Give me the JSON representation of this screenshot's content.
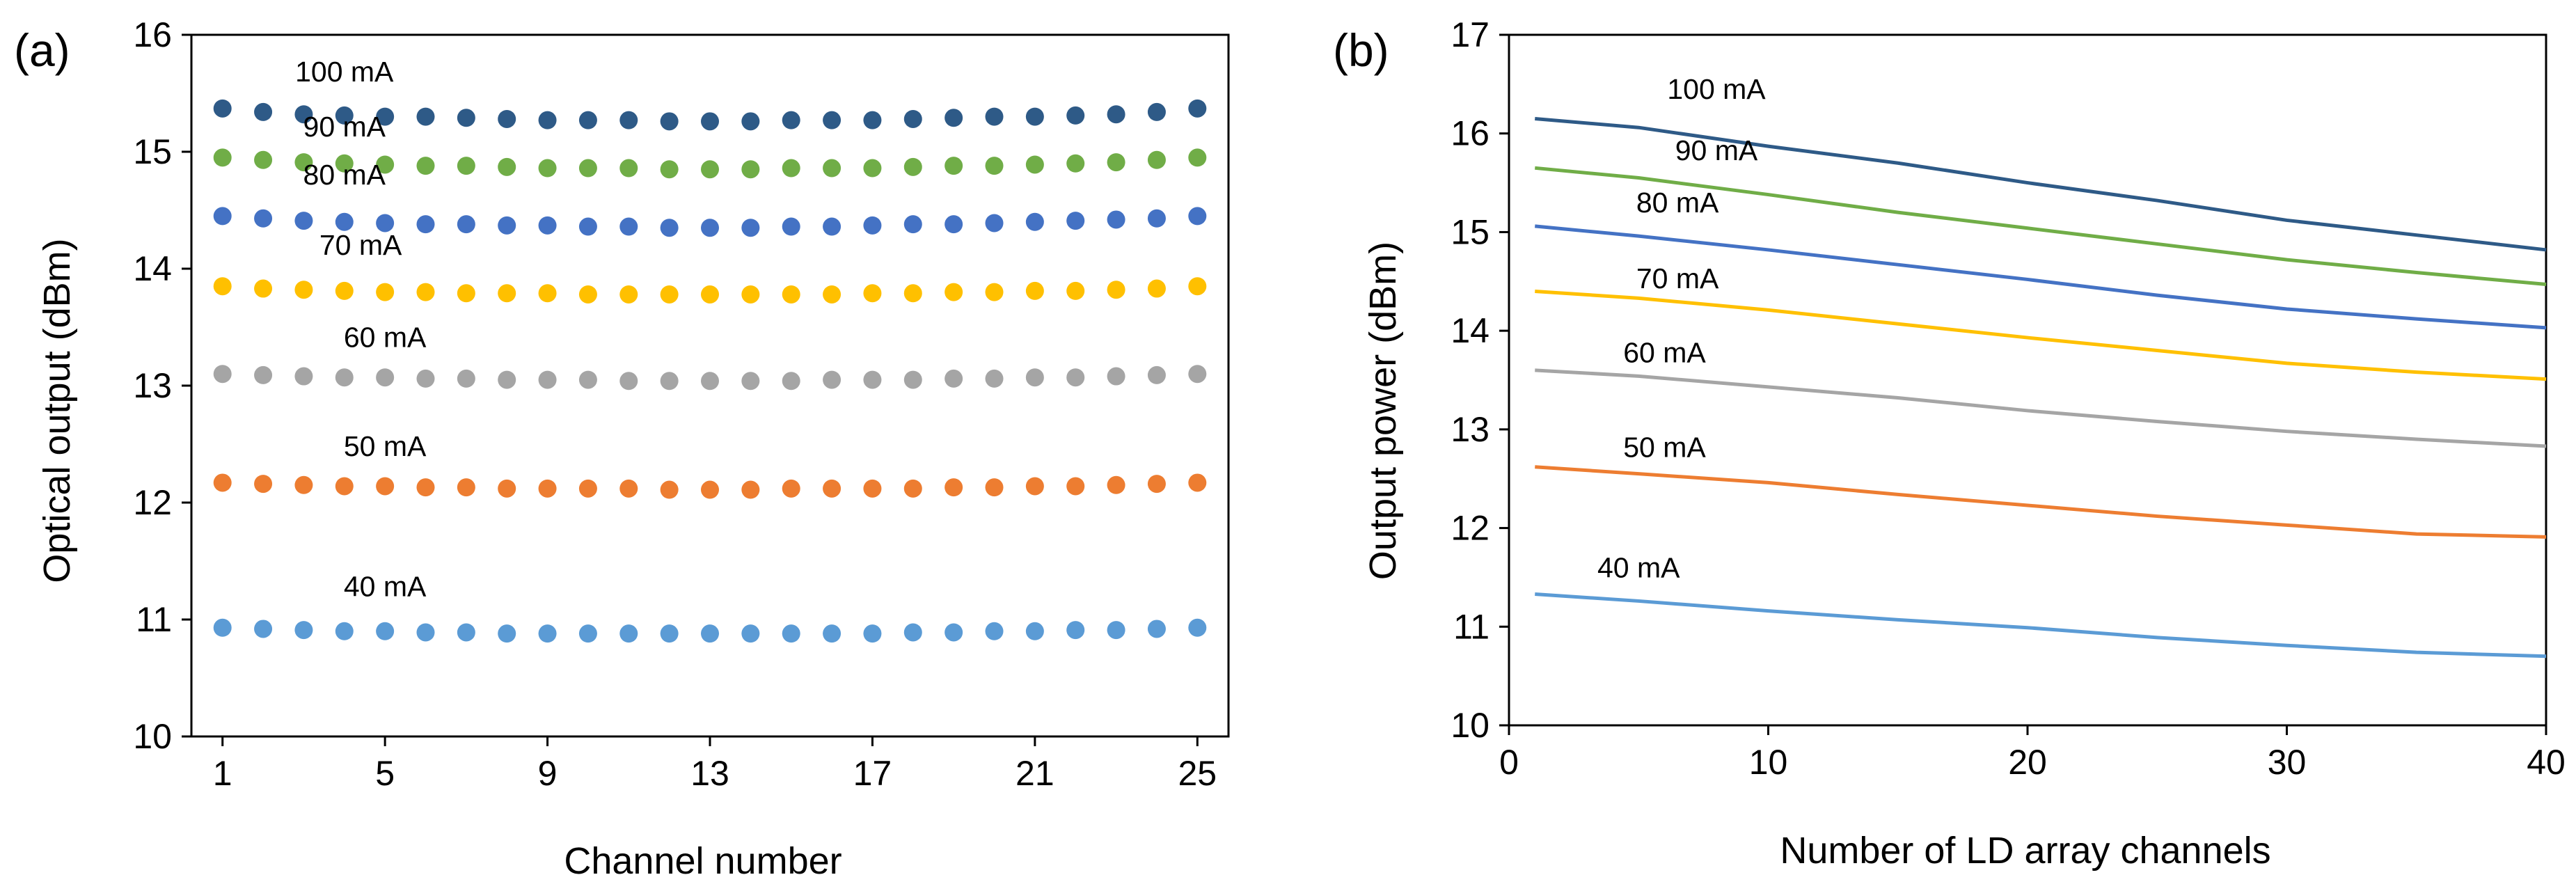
{
  "chart_data": [
    {
      "panel": "(a)",
      "type": "scatter",
      "xlabel": "Channel number",
      "ylabel": "Optical output (dBm)",
      "xlim": [
        1,
        25
      ],
      "ylim": [
        10,
        16
      ],
      "xticks": [
        1,
        5,
        9,
        13,
        17,
        21,
        25
      ],
      "yticks": [
        10,
        11,
        12,
        13,
        14,
        15,
        16
      ],
      "grid": false,
      "x": [
        1,
        2,
        3,
        4,
        5,
        6,
        7,
        8,
        9,
        10,
        11,
        12,
        13,
        14,
        15,
        16,
        17,
        18,
        19,
        20,
        21,
        22,
        23,
        24,
        25
      ],
      "series": [
        {
          "name": "100 mA",
          "label": "100 mA",
          "color": "#2e5a87",
          "label_x": 4,
          "label_y": 15.6,
          "values": [
            15.37,
            15.34,
            15.32,
            15.31,
            15.3,
            15.3,
            15.29,
            15.28,
            15.27,
            15.27,
            15.27,
            15.26,
            15.26,
            15.26,
            15.27,
            15.27,
            15.27,
            15.28,
            15.29,
            15.3,
            15.3,
            15.31,
            15.32,
            15.34,
            15.37
          ]
        },
        {
          "name": "90 mA",
          "label": "90 mA",
          "color": "#70ad47",
          "label_x": 4,
          "label_y": 15.13,
          "values": [
            14.95,
            14.93,
            14.91,
            14.9,
            14.89,
            14.88,
            14.88,
            14.87,
            14.86,
            14.86,
            14.86,
            14.85,
            14.85,
            14.85,
            14.86,
            14.86,
            14.86,
            14.87,
            14.88,
            14.88,
            14.89,
            14.9,
            14.91,
            14.93,
            14.95
          ]
        },
        {
          "name": "80 mA",
          "label": "80 mA",
          "color": "#4472c4",
          "label_x": 4,
          "label_y": 14.72,
          "values": [
            14.45,
            14.43,
            14.41,
            14.4,
            14.39,
            14.38,
            14.38,
            14.37,
            14.37,
            14.36,
            14.36,
            14.35,
            14.35,
            14.35,
            14.36,
            14.36,
            14.37,
            14.38,
            14.38,
            14.39,
            14.4,
            14.41,
            14.42,
            14.43,
            14.45
          ]
        },
        {
          "name": "70 mA",
          "label": "70 mA",
          "color": "#ffc000",
          "label_x": 4.4,
          "label_y": 14.12,
          "values": [
            13.85,
            13.83,
            13.82,
            13.81,
            13.8,
            13.8,
            13.79,
            13.79,
            13.79,
            13.78,
            13.78,
            13.78,
            13.78,
            13.78,
            13.78,
            13.78,
            13.79,
            13.79,
            13.8,
            13.8,
            13.81,
            13.81,
            13.82,
            13.83,
            13.85
          ]
        },
        {
          "name": "60 mA",
          "label": "60 mA",
          "color": "#a5a5a5",
          "label_x": 5,
          "label_y": 13.33,
          "values": [
            13.1,
            13.09,
            13.08,
            13.07,
            13.07,
            13.06,
            13.06,
            13.05,
            13.05,
            13.05,
            13.04,
            13.04,
            13.04,
            13.04,
            13.04,
            13.05,
            13.05,
            13.05,
            13.06,
            13.06,
            13.07,
            13.07,
            13.08,
            13.09,
            13.1
          ]
        },
        {
          "name": "50 mA",
          "label": "50 mA",
          "color": "#ed7d31",
          "label_x": 5,
          "label_y": 12.4,
          "values": [
            12.17,
            12.16,
            12.15,
            12.14,
            12.14,
            12.13,
            12.13,
            12.12,
            12.12,
            12.12,
            12.12,
            12.11,
            12.11,
            12.11,
            12.12,
            12.12,
            12.12,
            12.12,
            12.13,
            12.13,
            12.14,
            12.14,
            12.15,
            12.16,
            12.17
          ]
        },
        {
          "name": "40 mA",
          "label": "40 mA",
          "color": "#5b9bd5",
          "label_x": 5,
          "label_y": 11.2,
          "values": [
            10.93,
            10.92,
            10.91,
            10.9,
            10.9,
            10.89,
            10.89,
            10.88,
            10.88,
            10.88,
            10.88,
            10.88,
            10.88,
            10.88,
            10.88,
            10.88,
            10.88,
            10.89,
            10.89,
            10.9,
            10.9,
            10.91,
            10.91,
            10.92,
            10.93
          ]
        }
      ]
    },
    {
      "panel": "(b)",
      "type": "line",
      "xlabel": "Number of LD array channels",
      "ylabel": "Output power (dBm)",
      "xlim": [
        0,
        40
      ],
      "ylim": [
        10,
        17
      ],
      "xticks": [
        0,
        10,
        20,
        30,
        40
      ],
      "yticks": [
        10,
        11,
        12,
        13,
        14,
        15,
        16,
        17
      ],
      "grid": false,
      "x": [
        1,
        5,
        10,
        15,
        20,
        25,
        30,
        35,
        40
      ],
      "series": [
        {
          "name": "100 mA",
          "label": "100 mA",
          "color": "#2e5a87",
          "label_x": 8,
          "label_y": 16.35,
          "values": [
            16.15,
            16.06,
            15.87,
            15.7,
            15.5,
            15.32,
            15.12,
            14.97,
            14.82
          ]
        },
        {
          "name": "90 mA",
          "label": "90 mA",
          "color": "#70ad47",
          "label_x": 8,
          "label_y": 15.73,
          "values": [
            15.65,
            15.55,
            15.38,
            15.2,
            15.04,
            14.88,
            14.72,
            14.59,
            14.47
          ]
        },
        {
          "name": "80 mA",
          "label": "80 mA",
          "color": "#4472c4",
          "label_x": 6.5,
          "label_y": 15.2,
          "values": [
            15.06,
            14.96,
            14.82,
            14.67,
            14.52,
            14.36,
            14.22,
            14.12,
            14.03
          ]
        },
        {
          "name": "70 mA",
          "label": "70 mA",
          "color": "#ffc000",
          "label_x": 6.5,
          "label_y": 14.43,
          "values": [
            14.4,
            14.33,
            14.21,
            14.07,
            13.93,
            13.8,
            13.67,
            13.58,
            13.51
          ]
        },
        {
          "name": "60 mA",
          "label": "60 mA",
          "color": "#a5a5a5",
          "label_x": 6,
          "label_y": 13.68,
          "values": [
            13.6,
            13.54,
            13.43,
            13.32,
            13.19,
            13.08,
            12.98,
            12.9,
            12.83
          ]
        },
        {
          "name": "50 mA",
          "label": "50 mA",
          "color": "#ed7d31",
          "label_x": 6,
          "label_y": 12.72,
          "values": [
            12.62,
            12.55,
            12.46,
            12.34,
            12.23,
            12.12,
            12.03,
            11.94,
            11.91
          ]
        },
        {
          "name": "40 mA",
          "label": "40 mA",
          "color": "#5b9bd5",
          "label_x": 5,
          "label_y": 11.5,
          "values": [
            11.33,
            11.26,
            11.16,
            11.07,
            10.99,
            10.89,
            10.81,
            10.74,
            10.7
          ]
        }
      ]
    }
  ]
}
